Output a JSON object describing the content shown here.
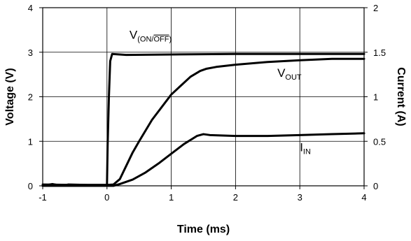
{
  "chart_data": {
    "type": "line",
    "xlabel": "Time (ms)",
    "ylabel": "Voltage (V)",
    "y2label": "Current (A)",
    "xlim": [
      -1,
      4
    ],
    "ylim": [
      0,
      4
    ],
    "y2lim": [
      0,
      2
    ],
    "xticks": [
      -1,
      0,
      1,
      2,
      3,
      4
    ],
    "yticks": [
      0,
      1,
      2,
      3,
      4
    ],
    "y2ticks": [
      0,
      0.5,
      1,
      1.5,
      2
    ],
    "grid": true,
    "series": [
      {
        "name": "V(ON/OFF)",
        "axis": "left",
        "color": "#000000",
        "x": [
          -1,
          -0.5,
          0,
          0.01,
          0.03,
          0.05,
          0.08,
          0.3,
          1.0,
          2.0,
          3.0,
          4.0
        ],
        "y": [
          0.03,
          0.02,
          0.02,
          0.9,
          2.0,
          2.8,
          2.96,
          2.94,
          2.95,
          2.96,
          2.96,
          2.96
        ]
      },
      {
        "name": "VOUT",
        "axis": "left",
        "color": "#000000",
        "x": [
          -1,
          -0.85,
          -0.7,
          -0.6,
          -0.3,
          0,
          0.1,
          0.2,
          0.3,
          0.4,
          0.5,
          0.7,
          1.0,
          1.3,
          1.45,
          1.55,
          1.7,
          2.0,
          2.5,
          3.0,
          3.5,
          4.0
        ],
        "y": [
          0.0,
          0.04,
          0.0,
          0.03,
          0.02,
          0.02,
          0.03,
          0.15,
          0.45,
          0.75,
          1.0,
          1.48,
          2.05,
          2.45,
          2.58,
          2.63,
          2.67,
          2.72,
          2.78,
          2.82,
          2.85,
          2.85
        ]
      },
      {
        "name": "IIN",
        "axis": "right",
        "color": "#000000",
        "x": [
          -1,
          -0.5,
          0,
          0.1,
          0.2,
          0.4,
          0.6,
          0.8,
          1.0,
          1.2,
          1.4,
          1.5,
          1.6,
          2.0,
          2.5,
          3.0,
          3.5,
          4.0
        ],
        "y": [
          0.0,
          0.0,
          0.0,
          0.0,
          0.02,
          0.07,
          0.15,
          0.25,
          0.36,
          0.47,
          0.56,
          0.58,
          0.57,
          0.56,
          0.56,
          0.57,
          0.58,
          0.59
        ]
      }
    ],
    "annotations": [
      {
        "main": "V",
        "sub": "(ON/",
        "sub_overline": "OFF",
        "sub_end": ")",
        "x": 0.35,
        "y": 3.3
      },
      {
        "main": "V",
        "sub": "OUT",
        "x": 2.65,
        "y": 2.45
      },
      {
        "main": "I",
        "sub": "IN",
        "x": 3.0,
        "y": 0.78
      }
    ]
  }
}
